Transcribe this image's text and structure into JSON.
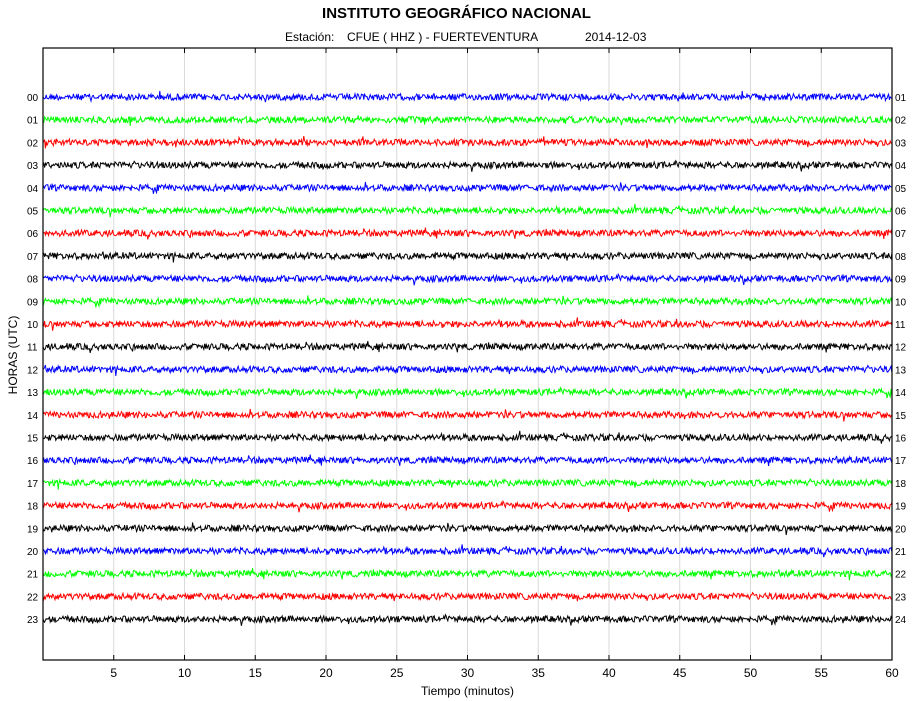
{
  "header": {
    "title": "INSTITUTO GEOGRÁFICO NACIONAL",
    "station_label": "Estación:",
    "station": "CFUE ( HHZ ) - FUERTEVENTURA",
    "date": "2014-12-03"
  },
  "chart_data": {
    "type": "line",
    "title": "INSTITUTO GEOGRÁFICO NACIONAL",
    "subtitle": "Estación:  CFUE ( HHZ ) - FUERTEVENTURA  2014-12-03",
    "xlabel": "Tiempo (minutos)",
    "ylabel": "HORAS (UTC)",
    "xlim": [
      0,
      60
    ],
    "x_ticks": [
      5,
      10,
      15,
      20,
      25,
      30,
      35,
      40,
      45,
      50,
      55,
      60
    ],
    "grid": "vertical",
    "left_labels": [
      "00",
      "01",
      "02",
      "03",
      "04",
      "05",
      "06",
      "07",
      "08",
      "09",
      "10",
      "11",
      "12",
      "13",
      "14",
      "15",
      "16",
      "17",
      "18",
      "19",
      "20",
      "21",
      "22",
      "23"
    ],
    "right_labels": [
      "01",
      "02",
      "03",
      "04",
      "05",
      "06",
      "07",
      "08",
      "09",
      "10",
      "11",
      "12",
      "13",
      "14",
      "15",
      "16",
      "17",
      "18",
      "19",
      "20",
      "21",
      "22",
      "23",
      "24"
    ],
    "trace_colors": [
      "#0000ff",
      "#00ff00",
      "#ff0000",
      "#000000"
    ],
    "trace_amplitude_relative": 1.0
  }
}
